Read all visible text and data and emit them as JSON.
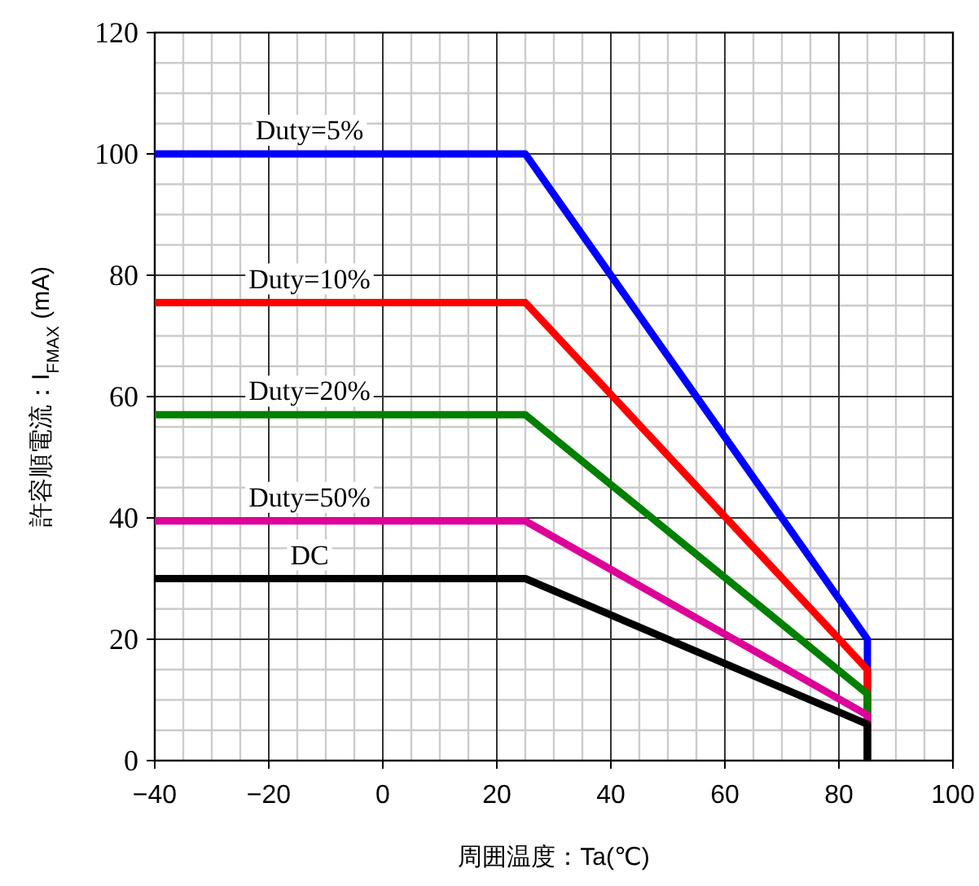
{
  "chart_data": {
    "type": "line",
    "xlabel": "周囲温度：Ta(℃)",
    "ylabel": "許容順電流：I$_{FMAX}$ (mA)",
    "xlim": [
      -40,
      100
    ],
    "xticks": [
      {
        "value": -40,
        "label": "−40"
      },
      {
        "value": -20,
        "label": "−20"
      },
      0,
      20,
      40,
      60,
      80,
      100
    ],
    "ylim": [
      0,
      120
    ],
    "yticks": [
      0,
      20,
      40,
      60,
      80,
      100,
      120
    ],
    "grid": true,
    "line_style": "solid",
    "series": [
      {
        "name": "Duty=5%",
        "color": "#0000ff",
        "x": [
          -40,
          25,
          85,
          85
        ],
        "values": [
          100,
          100,
          20,
          0
        ]
      },
      {
        "name": "Duty=10%",
        "color": "#ff0000",
        "x": [
          -40,
          25,
          85,
          85
        ],
        "values": [
          75.5,
          75.5,
          15,
          0
        ]
      },
      {
        "name": "Duty=20%",
        "color": "#008000",
        "x": [
          -40,
          25,
          85,
          85
        ],
        "values": [
          57,
          57,
          11,
          0
        ]
      },
      {
        "name": "Duty=50%",
        "color": "#dd0099",
        "x": [
          -40,
          25,
          85,
          85
        ],
        "values": [
          39.5,
          39.5,
          7.5,
          0
        ]
      },
      {
        "name": "DC",
        "color": "#000000",
        "x": [
          -40,
          25,
          85,
          85
        ],
        "values": [
          30,
          30,
          6,
          0
        ]
      }
    ]
  }
}
